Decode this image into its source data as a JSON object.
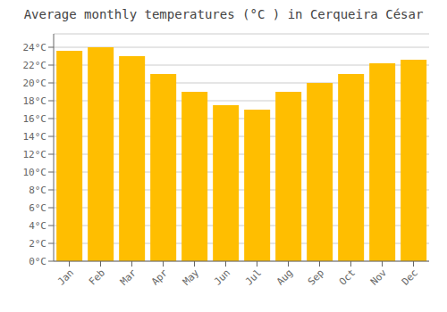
{
  "chart_data": {
    "type": "bar",
    "title": "Average monthly temperatures (°C ) in Cerqueira César",
    "categories": [
      "Jan",
      "Feb",
      "Mar",
      "Apr",
      "May",
      "Jun",
      "Jul",
      "Aug",
      "Sep",
      "Oct",
      "Nov",
      "Dec"
    ],
    "values": [
      23.6,
      24.0,
      23.0,
      21.0,
      19.0,
      17.5,
      17.0,
      19.0,
      20.0,
      21.0,
      22.2,
      22.6
    ],
    "color": "#FFBE00",
    "ylim": [
      0,
      25.5
    ],
    "yticks": [
      {
        "value": 0,
        "label": "0°C"
      },
      {
        "value": 2,
        "label": "2°C"
      },
      {
        "value": 4,
        "label": "4°C"
      },
      {
        "value": 6,
        "label": "6°C"
      },
      {
        "value": 8,
        "label": "8°C"
      },
      {
        "value": 10,
        "label": "10°C"
      },
      {
        "value": 12,
        "label": "12°C"
      },
      {
        "value": 14,
        "label": "14°C"
      },
      {
        "value": 16,
        "label": "16°C"
      },
      {
        "value": 18,
        "label": "18°C"
      },
      {
        "value": 20,
        "label": "20°C"
      },
      {
        "value": 22,
        "label": "22°C"
      },
      {
        "value": 24,
        "label": "24°C"
      }
    ],
    "grid": true
  }
}
